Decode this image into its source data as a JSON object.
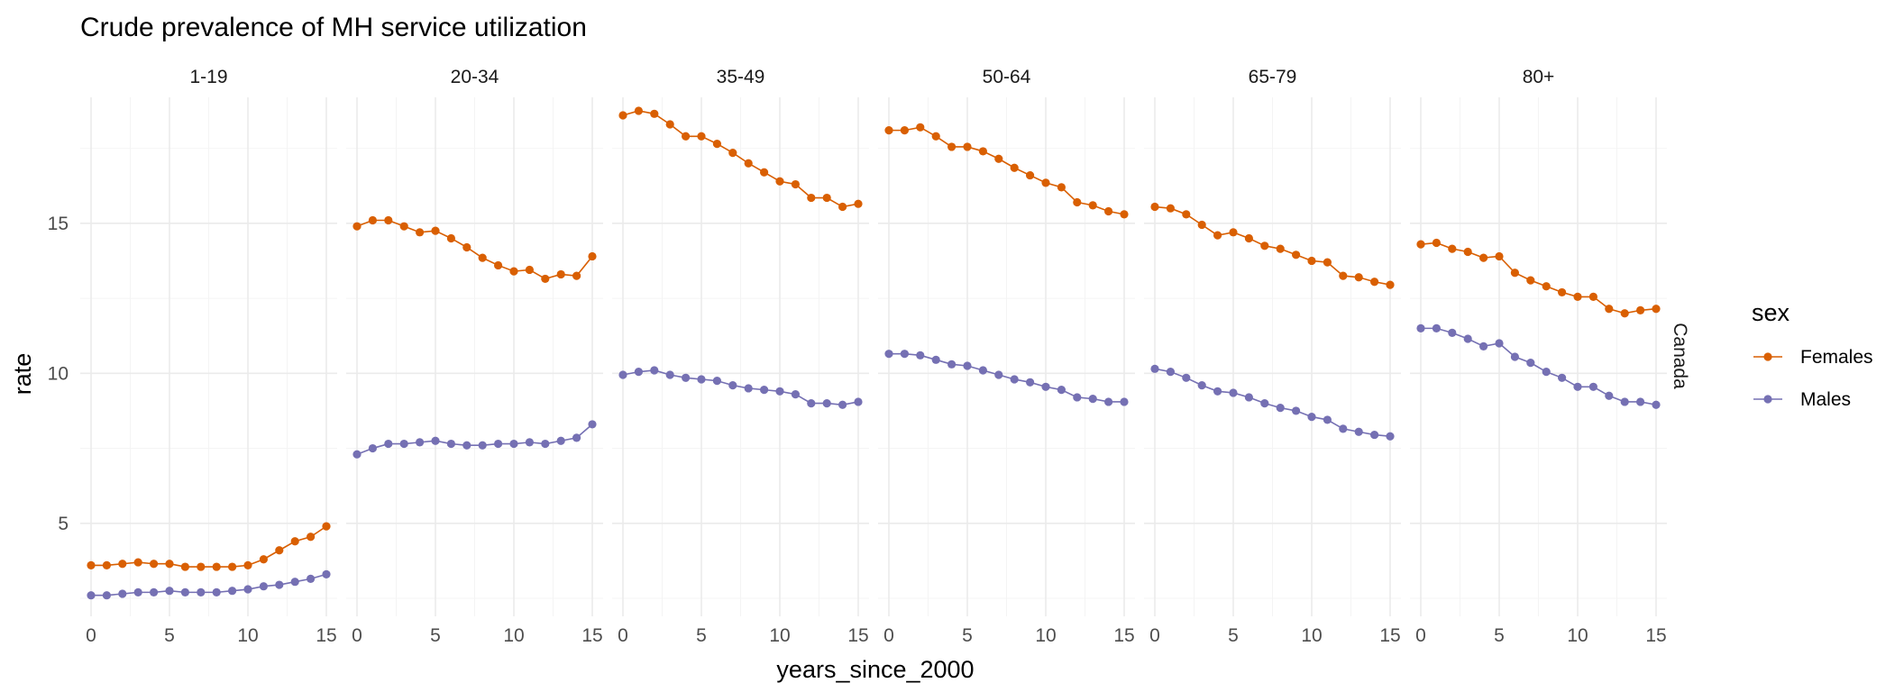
{
  "chart_data": {
    "type": "line",
    "title": "Crude prevalence of MH service utilization",
    "xlabel": "years_since_2000",
    "ylabel": "rate",
    "row_strip": "Canada",
    "xlim": [
      0,
      15
    ],
    "ylim": [
      1.9,
      19.2
    ],
    "x_ticks": [
      0,
      5,
      10,
      15
    ],
    "y_ticks": [
      5,
      10,
      15
    ],
    "grid": true,
    "legend": {
      "title": "sex",
      "position": "right"
    },
    "x": [
      0,
      1,
      2,
      3,
      4,
      5,
      6,
      7,
      8,
      9,
      10,
      11,
      12,
      13,
      14,
      15
    ],
    "facets": [
      {
        "label": "1-19",
        "series": [
          {
            "name": "Females",
            "color": "#d95f02",
            "values": [
              3.6,
              3.6,
              3.65,
              3.7,
              3.65,
              3.65,
              3.55,
              3.55,
              3.55,
              3.55,
              3.6,
              3.8,
              4.1,
              4.4,
              4.55,
              4.9
            ]
          },
          {
            "name": "Males",
            "color": "#7570b3",
            "values": [
              2.6,
              2.6,
              2.65,
              2.7,
              2.7,
              2.75,
              2.7,
              2.7,
              2.7,
              2.75,
              2.8,
              2.9,
              2.95,
              3.05,
              3.15,
              3.3
            ]
          }
        ]
      },
      {
        "label": "20-34",
        "series": [
          {
            "name": "Females",
            "color": "#d95f02",
            "values": [
              14.9,
              15.1,
              15.1,
              14.9,
              14.7,
              14.75,
              14.5,
              14.2,
              13.85,
              13.6,
              13.4,
              13.45,
              13.15,
              13.3,
              13.25,
              13.9
            ]
          },
          {
            "name": "Males",
            "color": "#7570b3",
            "values": [
              7.3,
              7.5,
              7.65,
              7.65,
              7.7,
              7.75,
              7.65,
              7.6,
              7.6,
              7.65,
              7.65,
              7.7,
              7.65,
              7.75,
              7.85,
              8.3
            ]
          }
        ]
      },
      {
        "label": "35-49",
        "series": [
          {
            "name": "Females",
            "color": "#d95f02",
            "values": [
              18.6,
              18.75,
              18.65,
              18.3,
              17.9,
              17.9,
              17.65,
              17.35,
              17.0,
              16.7,
              16.4,
              16.3,
              15.85,
              15.85,
              15.55,
              15.65
            ]
          },
          {
            "name": "Males",
            "color": "#7570b3",
            "values": [
              9.95,
              10.05,
              10.1,
              9.95,
              9.85,
              9.8,
              9.75,
              9.6,
              9.5,
              9.45,
              9.4,
              9.3,
              9.0,
              9.0,
              8.95,
              9.05
            ]
          }
        ]
      },
      {
        "label": "50-64",
        "series": [
          {
            "name": "Females",
            "color": "#d95f02",
            "values": [
              18.1,
              18.1,
              18.2,
              17.9,
              17.55,
              17.55,
              17.4,
              17.15,
              16.85,
              16.6,
              16.35,
              16.2,
              15.7,
              15.6,
              15.4,
              15.3
            ]
          },
          {
            "name": "Males",
            "color": "#7570b3",
            "values": [
              10.65,
              10.65,
              10.6,
              10.45,
              10.3,
              10.25,
              10.1,
              9.95,
              9.8,
              9.7,
              9.55,
              9.45,
              9.2,
              9.15,
              9.05,
              9.05
            ]
          }
        ]
      },
      {
        "label": "65-79",
        "series": [
          {
            "name": "Females",
            "color": "#d95f02",
            "values": [
              15.55,
              15.5,
              15.3,
              14.95,
              14.6,
              14.7,
              14.5,
              14.25,
              14.15,
              13.95,
              13.75,
              13.7,
              13.25,
              13.2,
              13.05,
              12.95
            ]
          },
          {
            "name": "Males",
            "color": "#7570b3",
            "values": [
              10.15,
              10.05,
              9.85,
              9.6,
              9.4,
              9.35,
              9.2,
              9.0,
              8.85,
              8.75,
              8.55,
              8.45,
              8.15,
              8.05,
              7.95,
              7.9
            ]
          }
        ]
      },
      {
        "label": "80+",
        "series": [
          {
            "name": "Females",
            "color": "#d95f02",
            "values": [
              14.3,
              14.35,
              14.15,
              14.05,
              13.85,
              13.9,
              13.35,
              13.1,
              12.9,
              12.7,
              12.55,
              12.55,
              12.15,
              12.0,
              12.1,
              12.15
            ]
          },
          {
            "name": "Males",
            "color": "#7570b3",
            "values": [
              11.5,
              11.5,
              11.35,
              11.15,
              10.9,
              11.0,
              10.55,
              10.35,
              10.05,
              9.85,
              9.55,
              9.55,
              9.25,
              9.05,
              9.05,
              8.95
            ]
          }
        ]
      }
    ]
  }
}
